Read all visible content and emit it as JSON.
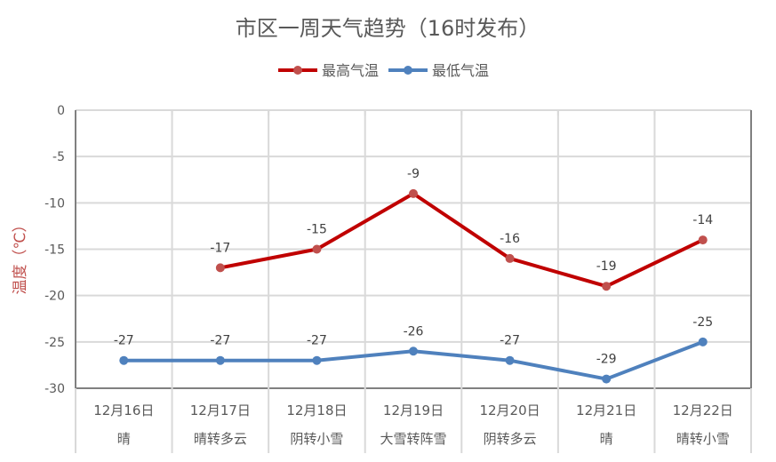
{
  "chart_data": {
    "type": "line",
    "title": "市区一周天气趋势（16时发布）",
    "ylabel": "温度（℃）",
    "ylim": [
      -30,
      0
    ],
    "yticks": [
      0,
      -5,
      -10,
      -15,
      -20,
      -25,
      -30
    ],
    "grid": true,
    "legend": "top",
    "categories": [
      "12月16日",
      "12月17日",
      "12月18日",
      "12月19日",
      "12月20日",
      "12月21日",
      "12月22日"
    ],
    "weather": [
      "晴",
      "晴转多云",
      "阴转小雪",
      "大雪转阵雪",
      "阴转多云",
      "晴",
      "晴转小雪"
    ],
    "series": [
      {
        "name": "最高气温",
        "color": "#c00000",
        "values": [
          null,
          -17,
          -15,
          -9,
          -16,
          -19,
          -14
        ]
      },
      {
        "name": "最低气温",
        "color": "#4f81bd",
        "values": [
          -27,
          -27,
          -27,
          -26,
          -27,
          -29,
          -25
        ]
      }
    ]
  }
}
